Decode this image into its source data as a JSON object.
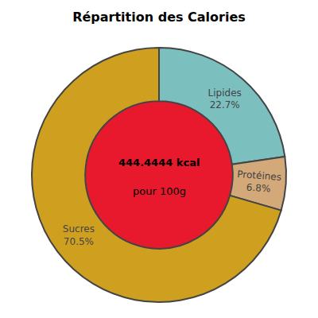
{
  "chart_data": {
    "type": "pie",
    "title": "Répartition des Calories",
    "categories": [
      "Lipides\n22.7%",
      "Protéines\n6.8%",
      "Sucres\n70.5%"
    ],
    "values": [
      22.7,
      6.8,
      70.5
    ],
    "colors": [
      "#7bbfbf",
      "#d4a97a",
      "#cfa020"
    ],
    "color": "#e8192c",
    "annotations": [
      "444.4444 kcal",
      "pour 100g"
    ]
  }
}
